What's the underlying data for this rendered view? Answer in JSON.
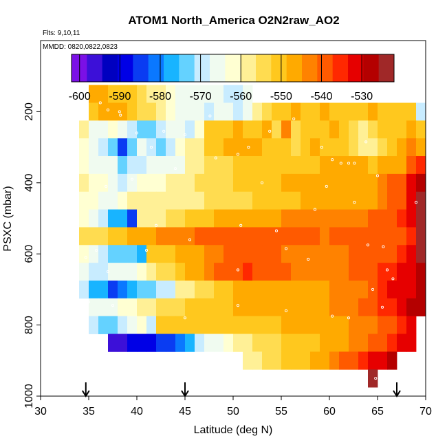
{
  "chart_data": {
    "type": "heatmap",
    "title": "ATOM1 North_America O2N2raw_AO2",
    "flights_text": "Flts: 9,10,11",
    "dates_text": "MMDD: 0820,0822,0823",
    "xlabel": "Latitude (deg N)",
    "ylabel": "PSXC (mbar)",
    "xlim": [
      30,
      70
    ],
    "ylim": [
      1000,
      0
    ],
    "x_ticks": [
      "30",
      "35",
      "40",
      "45",
      "50",
      "55",
      "60",
      "65",
      "70"
    ],
    "y_ticks": [
      "200",
      "400",
      "600",
      "800",
      "1000"
    ],
    "colorbar": {
      "range": [
        -602,
        -522
      ],
      "tick_labels": [
        "-600",
        "-590",
        "-580",
        "-570",
        "-560",
        "-550",
        "-540",
        "-530"
      ],
      "colors": [
        "#7b10e6",
        "#3c10d8",
        "#0000c0",
        "#0000e6",
        "#0a3cf2",
        "#0a78ff",
        "#18b4ff",
        "#64d2ff",
        "#c8ecff",
        "#f0fbf0",
        "#ffffd2",
        "#fff096",
        "#ffdc50",
        "#ffc81e",
        "#ffaa00",
        "#ff8200",
        "#ff5a00",
        "#ff2800",
        "#e60000",
        "#b40000",
        "#a02828"
      ]
    },
    "markers_lat": [
      34.7,
      45,
      67
    ],
    "rows": [
      {
        "p": 150,
        "lat0": 35,
        "vals": [
          -548,
          -546,
          -549,
          -550,
          -550,
          -553,
          -557,
          -560,
          -562,
          -564,
          -565,
          -566,
          -567,
          -566,
          -568,
          -568,
          -567
        ]
      },
      {
        "p": 200,
        "lat0": 35,
        "vals": [
          -550,
          -548,
          -546,
          -548,
          -549,
          -553,
          -556,
          -560,
          -563,
          -565,
          -566,
          -567,
          -568,
          -566,
          -567,
          -568,
          -567,
          -560,
          -553,
          -550,
          -550,
          -548,
          -550,
          -549,
          -548,
          -550,
          -551,
          -550,
          -549,
          -548,
          -550,
          -549,
          -550,
          -551,
          -568
        ]
      },
      {
        "p": 250,
        "lat0": 34,
        "vals": [
          -560,
          -565,
          -566,
          -563,
          -566,
          -571,
          -574,
          -572,
          -569,
          -566,
          -567,
          -571,
          -562,
          -552,
          -550,
          -550,
          -548,
          -549,
          -551,
          -547,
          -553,
          -544,
          -555,
          -552,
          -549,
          -550,
          -547,
          -550,
          -553,
          -558,
          -556,
          -551,
          -552,
          -549,
          -545,
          -550
        ]
      },
      {
        "p": 300,
        "lat0": 34,
        "vals": [
          -562,
          -567,
          -570,
          -575,
          -583,
          -574,
          -566,
          -569,
          -573,
          -568,
          -562,
          -558,
          -558,
          -552,
          -551,
          -548,
          -546,
          -545,
          -547,
          -549,
          -551,
          -550,
          -556,
          -550,
          -548,
          -551,
          -550,
          -549,
          -555,
          -558,
          -559,
          -556,
          -550,
          -548,
          -544,
          -548
        ]
      },
      {
        "p": 350,
        "lat0": 34,
        "vals": [
          -561,
          -564,
          -566,
          -567,
          -572,
          -570,
          -568,
          -566,
          -566,
          -566,
          -564,
          -559,
          -557,
          -556,
          -554,
          -553,
          -552,
          -551,
          -551,
          -551,
          -550,
          -550,
          -551,
          -550,
          -549,
          -548,
          -548,
          -548,
          -548,
          -548,
          -549,
          -548,
          -546,
          -546,
          -540,
          -537
        ]
      },
      {
        "p": 400,
        "lat0": 34,
        "vals": [
          -560,
          -561,
          -563,
          -566,
          -569,
          -567,
          -563,
          -562,
          -561,
          -560,
          -559,
          -557,
          -556,
          -555,
          -553,
          -553,
          -552,
          -551,
          -550,
          -549,
          -549,
          -548,
          -548,
          -548,
          -547,
          -546,
          -546,
          -546,
          -546,
          -545,
          -545,
          -542,
          -540,
          -538,
          -530,
          -527
        ]
      },
      {
        "p": 450,
        "lat0": 34,
        "vals": [
          -561,
          -563,
          -564,
          -566,
          -561,
          -560,
          -560,
          -560,
          -559,
          -558,
          -558,
          -558,
          -557,
          -556,
          -555,
          -554,
          -554,
          -553,
          -552,
          -551,
          -550,
          -549,
          -549,
          -548,
          -548,
          -547,
          -547,
          -546,
          -546,
          -545,
          -545,
          -543,
          -541,
          -539,
          -533,
          -525
        ]
      },
      {
        "p": 500,
        "lat0": 34,
        "vals": [
          -562,
          -566,
          -571,
          -576,
          -579,
          -583,
          -559,
          -558,
          -557,
          -556,
          -554,
          -552,
          -550,
          -549,
          -548,
          -548,
          -547,
          -546,
          -546,
          -545,
          -545,
          -544,
          -544,
          -543,
          -543,
          -542,
          -542,
          -542,
          -542,
          -542,
          -541,
          -541,
          -540,
          -537,
          -531,
          -525
        ]
      },
      {
        "p": 550,
        "lat0": 34,
        "vals": [
          -556,
          -555,
          -553,
          -551,
          -549,
          -548,
          -546,
          -545,
          -544,
          -543,
          -543,
          -542,
          -541,
          -540,
          -539,
          -538,
          -538,
          -539,
          -540,
          -540,
          -541,
          -541,
          -541,
          -541,
          -541,
          -542,
          -541,
          -541,
          -540,
          -540,
          -540,
          -540,
          -539,
          -538,
          -534,
          -525
        ]
      },
      {
        "p": 600,
        "lat0": 34,
        "vals": [
          -563,
          -567,
          -570,
          -572,
          -574,
          -575,
          -576,
          -552,
          -550,
          -549,
          -547,
          -546,
          -545,
          -543,
          -542,
          -541,
          -540,
          -540,
          -540,
          -541,
          -541,
          -542,
          -542,
          -542,
          -542,
          -543,
          -542,
          -542,
          -541,
          -541,
          -541,
          -540,
          -538,
          -536,
          -533,
          -525
        ]
      },
      {
        "p": 650,
        "lat0": 34,
        "vals": [
          -566,
          -568,
          -568,
          -566,
          -566,
          -564,
          -562,
          -558,
          -555,
          -553,
          -550,
          -547,
          -545,
          -543,
          -541,
          -539,
          -538,
          -537,
          -538,
          -539,
          -540,
          -541,
          -542,
          -542,
          -542,
          -542,
          -543,
          -542,
          -541,
          -540,
          -539,
          -537,
          -535,
          -533,
          -530,
          -526
        ]
      },
      {
        "p": 700,
        "lat0": 34,
        "vals": [
          -568,
          -576,
          -579,
          -585,
          -581,
          -577,
          -575,
          -572,
          -569,
          -569,
          -560,
          -557,
          -556,
          -555,
          -551,
          -549,
          -547,
          -545,
          -545,
          -546,
          -547,
          -547,
          -548,
          -548,
          -547,
          -545,
          -544,
          -544,
          -543,
          -542,
          -540,
          -535,
          -533,
          -532,
          -530,
          -526
        ]
      },
      {
        "p": 750,
        "lat0": 35,
        "vals": [
          -566,
          -565,
          -565,
          -563,
          -561,
          -560,
          -558,
          -556,
          -555,
          -553,
          -552,
          -551,
          -550,
          -550,
          -549,
          -548,
          -547,
          -546,
          -546,
          -545,
          -545,
          -545,
          -546,
          -546,
          -545,
          -544,
          -543,
          -542,
          -541,
          -540,
          -537,
          -535,
          -532,
          -528,
          -526
        ]
      },
      {
        "p": 800,
        "lat0": 35,
        "vals": [
          -568,
          -575,
          -572,
          -569,
          -567,
          -563,
          -568,
          -552,
          -552,
          -551,
          -551,
          -551,
          -550,
          -550,
          -550,
          -550,
          -550,
          -549,
          -549,
          -549,
          -548,
          -548,
          -548,
          -547,
          -546,
          -545,
          -545,
          -544,
          -543,
          -542,
          -540,
          -538,
          -535,
          -532
        ]
      },
      {
        "p": 850,
        "lat0": 37,
        "vals": [
          -598,
          -595,
          -590,
          -589,
          -587,
          -585,
          -584,
          -580,
          -576,
          -571,
          -567,
          -564,
          -562,
          -560,
          -558,
          -556,
          -555,
          -554,
          -552,
          -551,
          -550,
          -549,
          -548,
          -546,
          -545,
          -544,
          -542,
          -540,
          -538,
          -536,
          -532,
          -530
        ]
      },
      {
        "p": 900,
        "lat0": 51,
        "vals": [
          -560,
          -558,
          -555,
          -553,
          -551,
          -550,
          -549,
          -547,
          -545,
          -543,
          -541,
          -538,
          -536,
          -532,
          -530,
          -528
        ]
      },
      {
        "p": 950,
        "lat0": 64,
        "vals": [
          -525
        ]
      }
    ],
    "obs_points": [
      {
        "lat": 36.2,
        "p": 175
      },
      {
        "lat": 37.0,
        "p": 195
      },
      {
        "lat": 38.2,
        "p": 200
      },
      {
        "lat": 38.3,
        "p": 210
      },
      {
        "lat": 40.0,
        "p": 260
      },
      {
        "lat": 41.5,
        "p": 300
      },
      {
        "lat": 42.8,
        "p": 255
      },
      {
        "lat": 45.0,
        "p": 265
      },
      {
        "lat": 47.6,
        "p": 212
      },
      {
        "lat": 51.6,
        "p": 300
      },
      {
        "lat": 53.8,
        "p": 255
      },
      {
        "lat": 56.3,
        "p": 220
      },
      {
        "lat": 59.2,
        "p": 300
      },
      {
        "lat": 60.3,
        "p": 335
      },
      {
        "lat": 61.2,
        "p": 345
      },
      {
        "lat": 62.0,
        "p": 345
      },
      {
        "lat": 62.6,
        "p": 345
      },
      {
        "lat": 65.0,
        "p": 380
      },
      {
        "lat": 63.8,
        "p": 285
      },
      {
        "lat": 69.0,
        "p": 455
      },
      {
        "lat": 36.8,
        "p": 410
      },
      {
        "lat": 39.5,
        "p": 390
      },
      {
        "lat": 44.0,
        "p": 360
      },
      {
        "lat": 48.2,
        "p": 330
      },
      {
        "lat": 50.5,
        "p": 320
      },
      {
        "lat": 53.0,
        "p": 400
      },
      {
        "lat": 59.7,
        "p": 410
      },
      {
        "lat": 62.6,
        "p": 455
      },
      {
        "lat": 58.5,
        "p": 475
      },
      {
        "lat": 50.8,
        "p": 520
      },
      {
        "lat": 54.5,
        "p": 535
      },
      {
        "lat": 34.7,
        "p": 610
      },
      {
        "lat": 35.8,
        "p": 590
      },
      {
        "lat": 41.0,
        "p": 590
      },
      {
        "lat": 45.5,
        "p": 560
      },
      {
        "lat": 55.5,
        "p": 585
      },
      {
        "lat": 64.0,
        "p": 575
      },
      {
        "lat": 65.6,
        "p": 580
      },
      {
        "lat": 66.0,
        "p": 645
      },
      {
        "lat": 37.0,
        "p": 650
      },
      {
        "lat": 50.5,
        "p": 645
      },
      {
        "lat": 57.8,
        "p": 615
      },
      {
        "lat": 64.5,
        "p": 700
      },
      {
        "lat": 65.5,
        "p": 750
      },
      {
        "lat": 35.0,
        "p": 735
      },
      {
        "lat": 37.5,
        "p": 745
      },
      {
        "lat": 45.0,
        "p": 780
      },
      {
        "lat": 50.5,
        "p": 745
      },
      {
        "lat": 55.5,
        "p": 760
      },
      {
        "lat": 60.3,
        "p": 775
      },
      {
        "lat": 62.0,
        "p": 780
      },
      {
        "lat": 66.6,
        "p": 670
      },
      {
        "lat": 64.8,
        "p": 950
      },
      {
        "lat": 65.4,
        "p": 935
      },
      {
        "lat": 42.0,
        "p": 520
      }
    ]
  }
}
